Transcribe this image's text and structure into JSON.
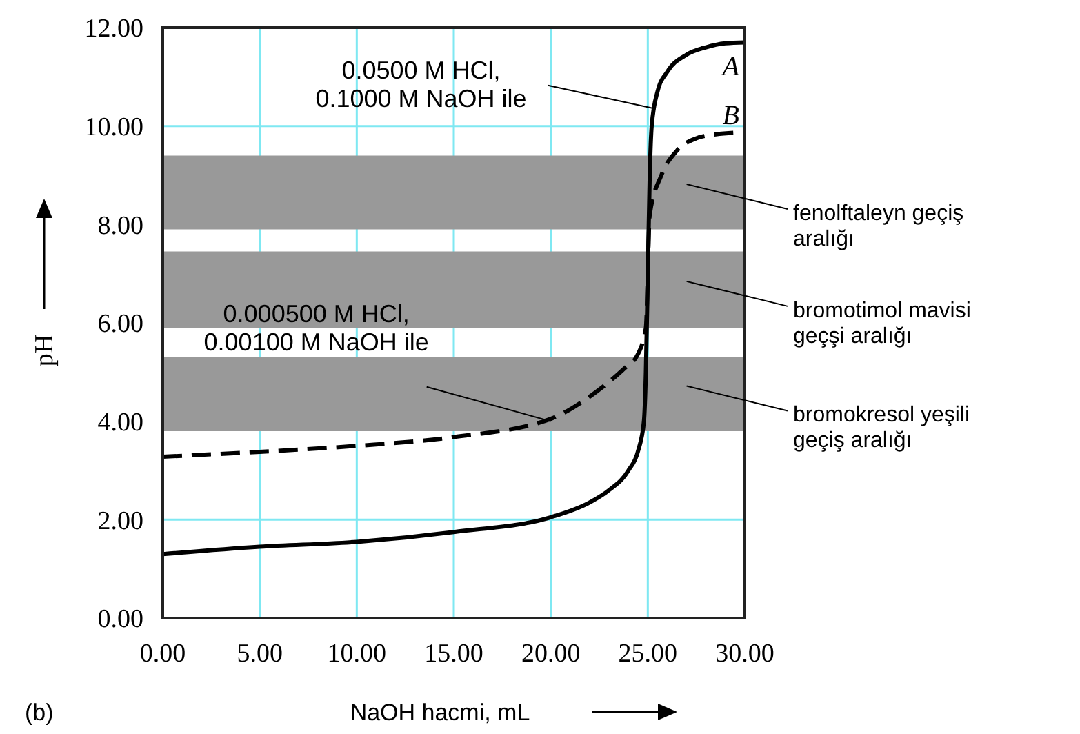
{
  "chart_data": {
    "type": "line",
    "xlabel": "NaOH hacmi, mL",
    "ylabel": "pH",
    "xlim": [
      0,
      30
    ],
    "ylim": [
      0,
      12
    ],
    "xticks": [
      {
        "value": 0,
        "label": "0.00"
      },
      {
        "value": 5,
        "label": "5.00"
      },
      {
        "value": 10,
        "label": "10.00"
      },
      {
        "value": 15,
        "label": "15.00"
      },
      {
        "value": 20,
        "label": "20.00"
      },
      {
        "value": 25,
        "label": "25.00"
      },
      {
        "value": 30,
        "label": "30.00"
      }
    ],
    "yticks": [
      {
        "value": 0,
        "label": "0.00"
      },
      {
        "value": 2,
        "label": "2.00"
      },
      {
        "value": 4,
        "label": "4.00"
      },
      {
        "value": 6,
        "label": "6.00"
      },
      {
        "value": 8,
        "label": "8.00"
      },
      {
        "value": 10,
        "label": "10.00"
      },
      {
        "value": 12,
        "label": "12.00"
      }
    ],
    "grid": true,
    "marker": "none",
    "series": [
      {
        "name": "A",
        "color": "#000000",
        "line_style": "solid",
        "x": [
          0,
          5,
          10,
          15,
          20,
          22,
          23,
          24,
          24.5,
          24.8,
          24.9,
          25,
          25.1,
          25.2,
          25.5,
          26,
          27,
          28,
          29,
          30
        ],
        "values": [
          1.3,
          1.45,
          1.55,
          1.75,
          2.05,
          2.35,
          2.6,
          3.0,
          3.4,
          4.0,
          5.0,
          7.0,
          9.0,
          10.0,
          10.7,
          11.1,
          11.45,
          11.6,
          11.68,
          11.7
        ]
      },
      {
        "name": "B",
        "color": "#000000",
        "line_style": "dashed",
        "x": [
          0,
          5,
          10,
          15,
          20,
          22,
          23,
          24,
          24.4,
          24.9,
          25.1,
          25.7,
          26.5,
          27.5,
          28.5,
          30
        ],
        "values": [
          3.28,
          3.38,
          3.5,
          3.68,
          4.05,
          4.5,
          4.8,
          5.15,
          5.3,
          5.9,
          8.2,
          9.0,
          9.5,
          9.75,
          9.83,
          9.87
        ]
      }
    ],
    "bands": [
      {
        "axis": "y",
        "from": 7.9,
        "to": 9.4,
        "label": "fenolftaleyn geçiş\naralığı",
        "color": "#999999"
      },
      {
        "axis": "y",
        "from": 5.9,
        "to": 7.45,
        "label": "bromotimol mavisi\ngeçşi aralığı",
        "color": "#999999"
      },
      {
        "axis": "y",
        "from": 3.8,
        "to": 5.3,
        "label": "bromokresol yeşili\ngeçiş aralığı",
        "color": "#999999"
      }
    ],
    "annotations": [
      {
        "text": "0.0500 M HCl,\n0.1000 M NaOH ile",
        "x": 25.4,
        "y": 10.35
      },
      {
        "text": "0.000500 M HCl,\n0.00100 M NaOH ile",
        "x": 20,
        "y": 4.0
      },
      "(b)"
    ]
  }
}
